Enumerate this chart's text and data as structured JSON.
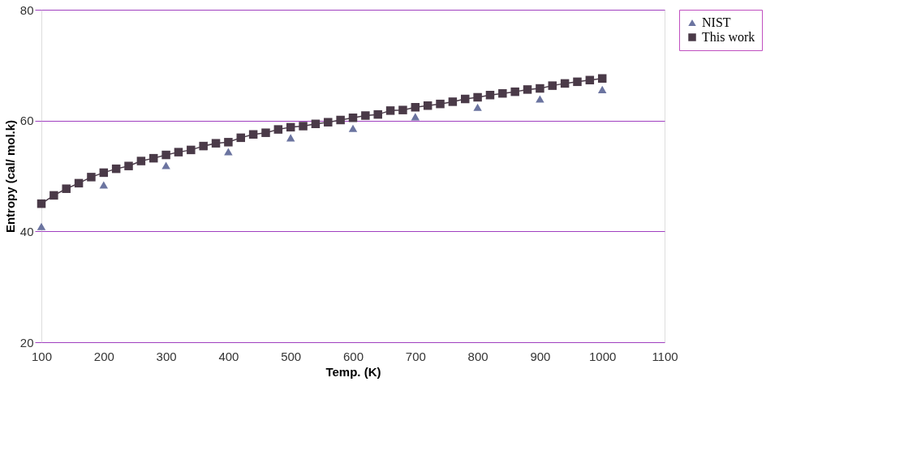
{
  "chart_data": {
    "type": "line",
    "xlabel": "Temp. (K)",
    "ylabel": "Entropy (cal/ mol.k)",
    "xlim": [
      100,
      1100
    ],
    "xticks": [
      100,
      200,
      300,
      400,
      500,
      600,
      700,
      800,
      900,
      1000,
      1100
    ],
    "ylim": [
      20,
      80
    ],
    "yticks": [
      20,
      40,
      60,
      80
    ],
    "grid": "y",
    "legend": "right",
    "series": [
      {
        "name": "NIST",
        "type": "scatter",
        "marker": "triangle",
        "color": "#6b74a0",
        "x": [
          100,
          200,
          300,
          400,
          500,
          600,
          700,
          800,
          900,
          1000
        ],
        "values": [
          40.9,
          48.4,
          51.9,
          54.4,
          56.9,
          58.6,
          60.7,
          62.4,
          63.9,
          65.6
        ]
      },
      {
        "name": "This work",
        "type": "line",
        "marker": "square",
        "color": "#4a3a48",
        "x": [
          100,
          120,
          140,
          160,
          180,
          200,
          220,
          240,
          260,
          280,
          300,
          320,
          340,
          360,
          380,
          400,
          420,
          440,
          460,
          480,
          500,
          520,
          540,
          560,
          580,
          600,
          620,
          640,
          660,
          680,
          700,
          720,
          740,
          760,
          780,
          800,
          820,
          840,
          860,
          880,
          900,
          920,
          940,
          960,
          980,
          1000
        ],
        "values": [
          45.0,
          46.5,
          47.7,
          48.7,
          49.8,
          50.6,
          51.3,
          51.8,
          52.7,
          53.2,
          53.8,
          54.3,
          54.7,
          55.4,
          55.9,
          56.1,
          56.9,
          57.5,
          57.8,
          58.4,
          58.8,
          59.0,
          59.4,
          59.7,
          60.1,
          60.5,
          60.9,
          61.1,
          61.8,
          61.9,
          62.4,
          62.7,
          63.0,
          63.4,
          63.9,
          64.2,
          64.6,
          64.9,
          65.2,
          65.6,
          65.8,
          66.3,
          66.7,
          67.0,
          67.3,
          67.6
        ]
      }
    ]
  }
}
